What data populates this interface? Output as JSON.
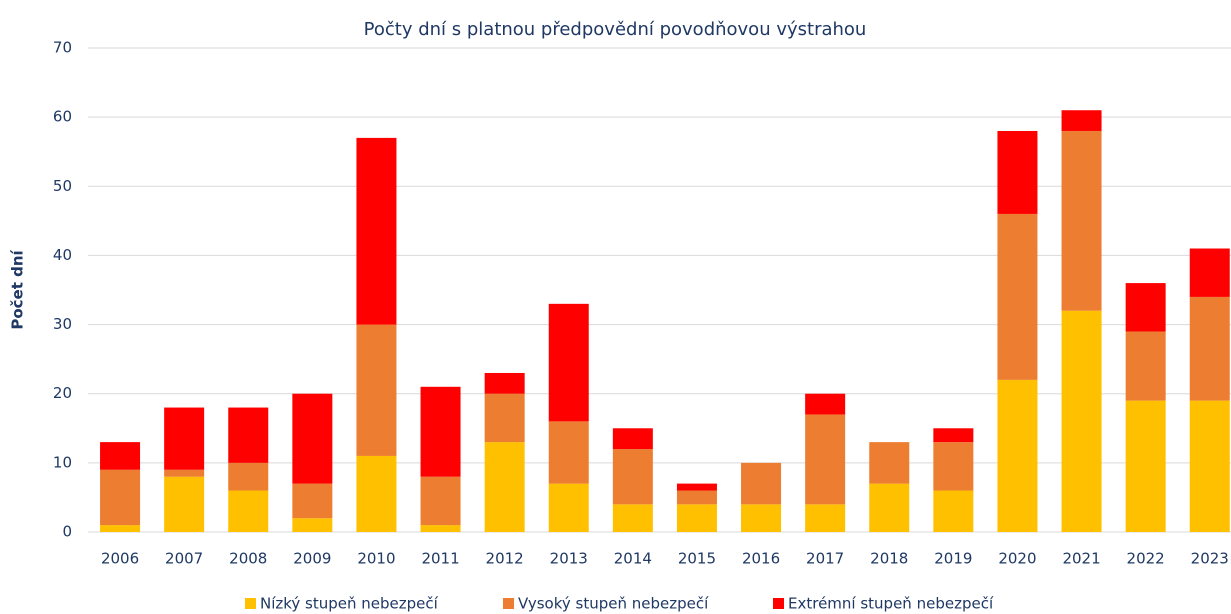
{
  "chart_data": {
    "type": "stacked_bar",
    "title": "Počty dní s platnou předpovědní povodňovou výstrahou",
    "y_label": "Počet dní",
    "categories": [
      "2006",
      "2007",
      "2008",
      "2009",
      "2010",
      "2011",
      "2012",
      "2013",
      "2014",
      "2015",
      "2016",
      "2017",
      "2018",
      "2019",
      "2020",
      "2021",
      "2022",
      "2023"
    ],
    "series": [
      {
        "name": "Nízký stupeň nebezpečí",
        "color": "#ffc000",
        "values": [
          1,
          8,
          6,
          2,
          11,
          1,
          13,
          7,
          4,
          4,
          4,
          4,
          7,
          6,
          22,
          32,
          19,
          19
        ]
      },
      {
        "name": "Vysoký stupeň nebezpečí",
        "color": "#ed7d31",
        "values": [
          8,
          1,
          4,
          5,
          19,
          7,
          7,
          9,
          8,
          2,
          6,
          13,
          6,
          7,
          24,
          26,
          10,
          15
        ]
      },
      {
        "name": "Extrémní stupeň nebezpečí",
        "color": "#ff0000",
        "values": [
          4,
          9,
          8,
          13,
          27,
          13,
          3,
          17,
          3,
          1,
          0,
          3,
          0,
          2,
          12,
          3,
          7,
          7
        ]
      }
    ],
    "ylim": [
      0,
      70
    ],
    "yticks": [
      0,
      10,
      20,
      30,
      40,
      50,
      60,
      70
    ],
    "grid": true,
    "legend": "bottom"
  }
}
